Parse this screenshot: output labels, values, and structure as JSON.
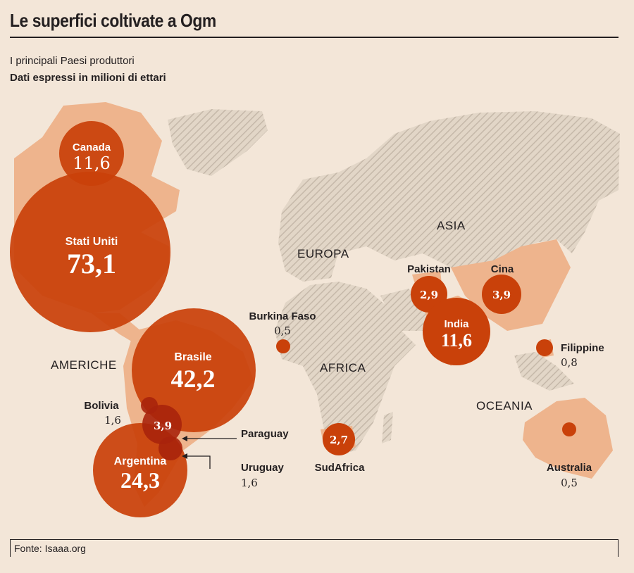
{
  "header": {
    "title": "Le superfici coltivate a Ogm",
    "subtitle": "I principali Paesi produttori",
    "unit": "Dati espressi in milioni di ettari"
  },
  "regions": {
    "asia": "ASIA",
    "europa": "EUROPA",
    "americhe": "AMERICHE",
    "africa": "AFRICA",
    "oceania": "OCEANIA"
  },
  "countries": {
    "canada": {
      "name": "Canada",
      "value": "11,6"
    },
    "usa": {
      "name": "Stati Uniti",
      "value": "73,1"
    },
    "brasile": {
      "name": "Brasile",
      "value": "42,2"
    },
    "argentina": {
      "name": "Argentina",
      "value": "24,3"
    },
    "bolivia": {
      "name": "Bolivia",
      "value": "1,6"
    },
    "paraguay": {
      "name": "Paraguay",
      "value": "3,9"
    },
    "uruguay": {
      "name": "Uruguay",
      "value": "1,6"
    },
    "burkina": {
      "name": "Burkina Faso",
      "value": "0,5"
    },
    "sudafrica": {
      "name": "SudAfrica",
      "value": "2,7"
    },
    "pakistan": {
      "name": "Pakistan",
      "value": "2,9"
    },
    "cina": {
      "name": "Cina",
      "value": "3,9"
    },
    "india": {
      "name": "India",
      "value": "11,6"
    },
    "filippine": {
      "name": "Filippine",
      "value": "0,8"
    },
    "australia": {
      "name": "Australia",
      "value": "0,5"
    }
  },
  "colors": {
    "background": "#f3e6d8",
    "bubble": "#c9410a",
    "bubble_dark": "#a9230c",
    "land_highlight": "#eeb48d",
    "land_hatch": "#cfc3b4"
  },
  "footer": {
    "source": "Fonte: Isaaa.org"
  }
}
